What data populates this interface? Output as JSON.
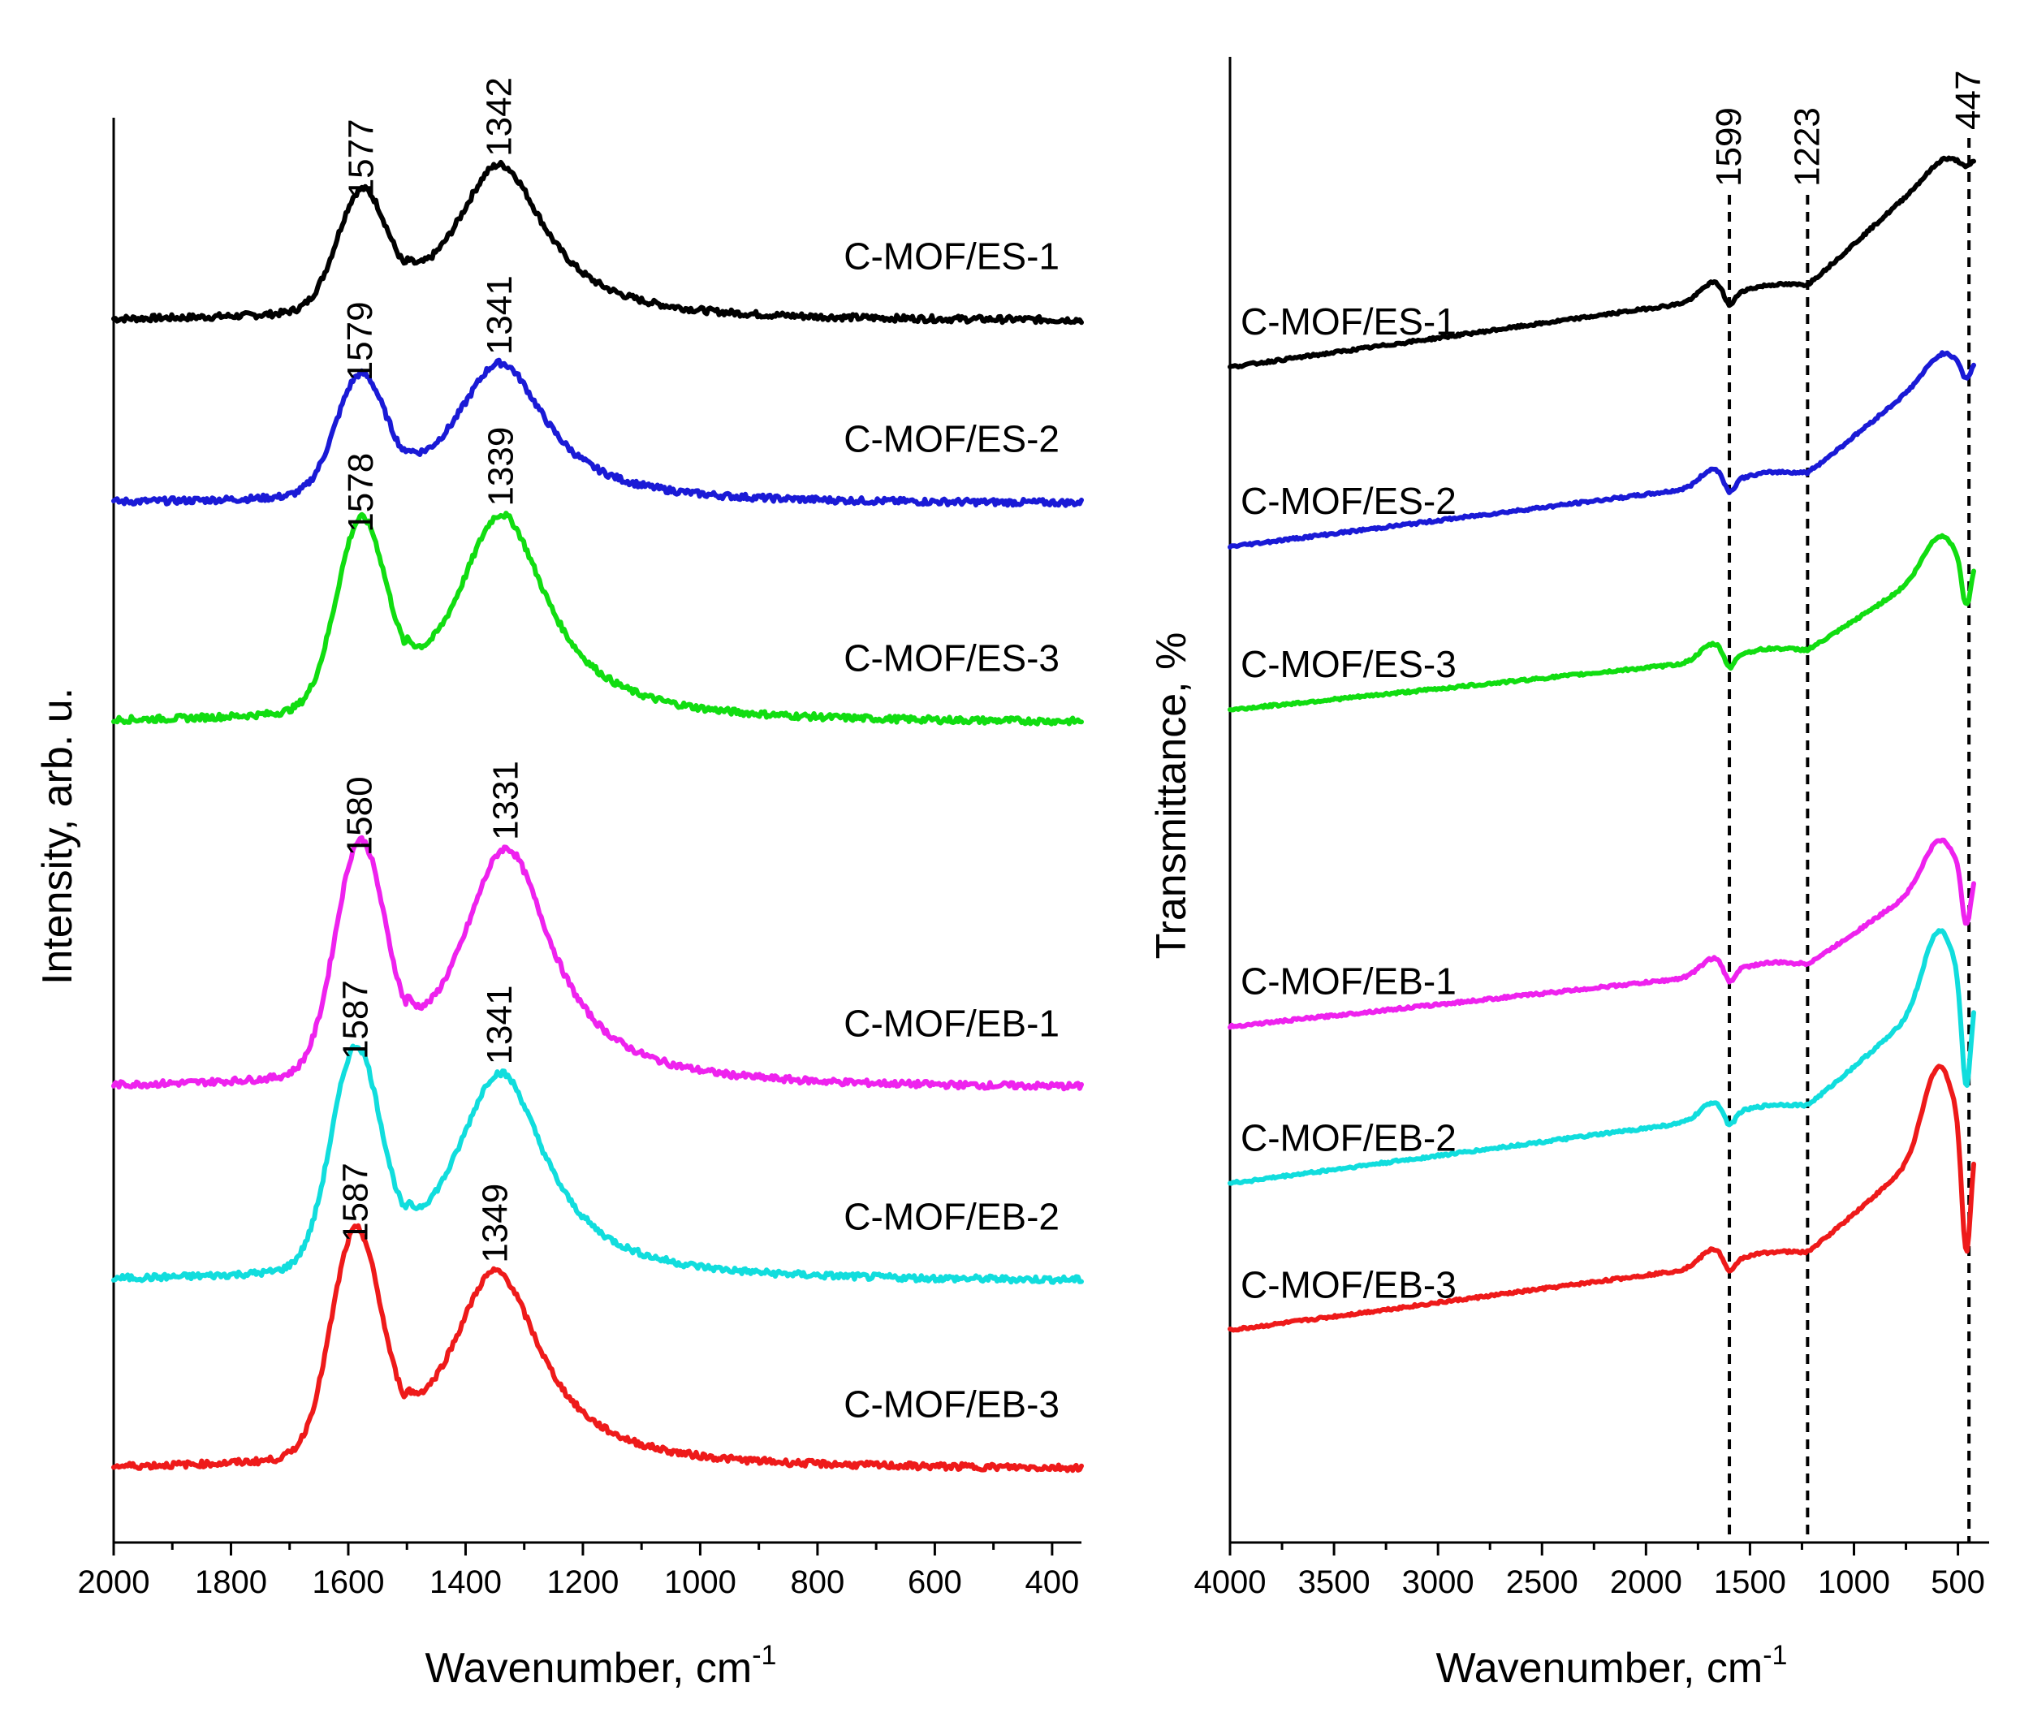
{
  "chart_data": [
    {
      "type": "line",
      "panel": "left",
      "title": "",
      "xlabel": "Wavenumber, cm",
      "xlabel_sup": "-1",
      "ylabel": "Intensity, arb. u.",
      "xlim": [
        2000,
        350
      ],
      "x_ticks": [
        "2000",
        "1800",
        "1600",
        "1400",
        "1200",
        "1000",
        "800",
        "600",
        "400"
      ],
      "x_tick_values": [
        2000,
        1800,
        1600,
        1400,
        1200,
        1000,
        800,
        600,
        400
      ],
      "grid": false,
      "series": [
        {
          "name": "C-MOF/ES-1",
          "color": "#000000",
          "peaks": [
            {
              "x": 1577,
              "label": "1577"
            },
            {
              "x": 1342,
              "label": "1342"
            }
          ],
          "baseline": 0.79,
          "g_amp": 0.22,
          "d_amp": 0.3
        },
        {
          "name": "C-MOF/ES-2",
          "color": "#1a1ad6",
          "peaks": [
            {
              "x": 1579,
              "label": "1579"
            },
            {
              "x": 1341,
              "label": "1341"
            }
          ],
          "baseline": 0.44,
          "g_amp": 0.22,
          "d_amp": 0.27
        },
        {
          "name": "C-MOF/ES-3",
          "color": "#11dd11",
          "peaks": [
            {
              "x": 1578,
              "label": "1578"
            },
            {
              "x": 1339,
              "label": "1339"
            }
          ],
          "baseline": 0.02,
          "g_amp": 0.35,
          "d_amp": 0.4
        },
        {
          "name": "C-MOF/EB-1",
          "color": "#ee22ee",
          "peaks": [
            {
              "x": 1580,
              "label": "1580"
            },
            {
              "x": 1331,
              "label": "1331"
            }
          ],
          "baseline": -0.68,
          "g_amp": 0.43,
          "d_amp": 0.46
        },
        {
          "name": "C-MOF/EB-2",
          "color": "#11dddd",
          "peaks": [
            {
              "x": 1587,
              "label": "1587"
            },
            {
              "x": 1341,
              "label": "1341"
            }
          ],
          "baseline": -1.05,
          "g_amp": 0.41,
          "d_amp": 0.4
        },
        {
          "name": "C-MOF/EB-3",
          "color": "#ee1a1a",
          "peaks": [
            {
              "x": 1587,
              "label": "1587"
            },
            {
              "x": 1349,
              "label": "1349"
            }
          ],
          "baseline": -1.41,
          "g_amp": 0.42,
          "d_amp": 0.38
        }
      ]
    },
    {
      "type": "line",
      "panel": "right",
      "title": "",
      "xlabel": "Wavenumber, cm",
      "xlabel_sup": "-1",
      "ylabel": "Transmittance, %",
      "xlim": [
        4000,
        350
      ],
      "x_ticks": [
        "4000",
        "3500",
        "3000",
        "2500",
        "2000",
        "1500",
        "1000",
        "500"
      ],
      "x_tick_values": [
        4000,
        3500,
        3000,
        2500,
        2000,
        1500,
        1000,
        500
      ],
      "grid": false,
      "reference_lines": [
        {
          "x": 1599,
          "label": "1599"
        },
        {
          "x": 1223,
          "label": "1223"
        },
        {
          "x": 447,
          "label": "447"
        }
      ],
      "series": [
        {
          "name": "C-MOF/ES-1",
          "color": "#000000",
          "baseline": 0.0,
          "amp": 0.58,
          "dip": 0.04
        },
        {
          "name": "C-MOF/ES-2",
          "color": "#1a1ad6",
          "baseline": -0.55,
          "amp": 0.52,
          "dip": 0.1
        },
        {
          "name": "C-MOF/ES-3",
          "color": "#11dd11",
          "baseline": -1.05,
          "amp": 0.42,
          "dip": 0.25
        },
        {
          "name": "C-MOF/EB-1",
          "color": "#ee22ee",
          "baseline": -2.02,
          "amp": 0.44,
          "dip": 0.3
        },
        {
          "name": "C-MOF/EB-2",
          "color": "#11dddd",
          "baseline": -2.5,
          "amp": 0.55,
          "dip": 0.55
        },
        {
          "name": "C-MOF/EB-3",
          "color": "#ee1a1a",
          "baseline": -2.95,
          "amp": 0.55,
          "dip": 0.65
        }
      ]
    }
  ]
}
